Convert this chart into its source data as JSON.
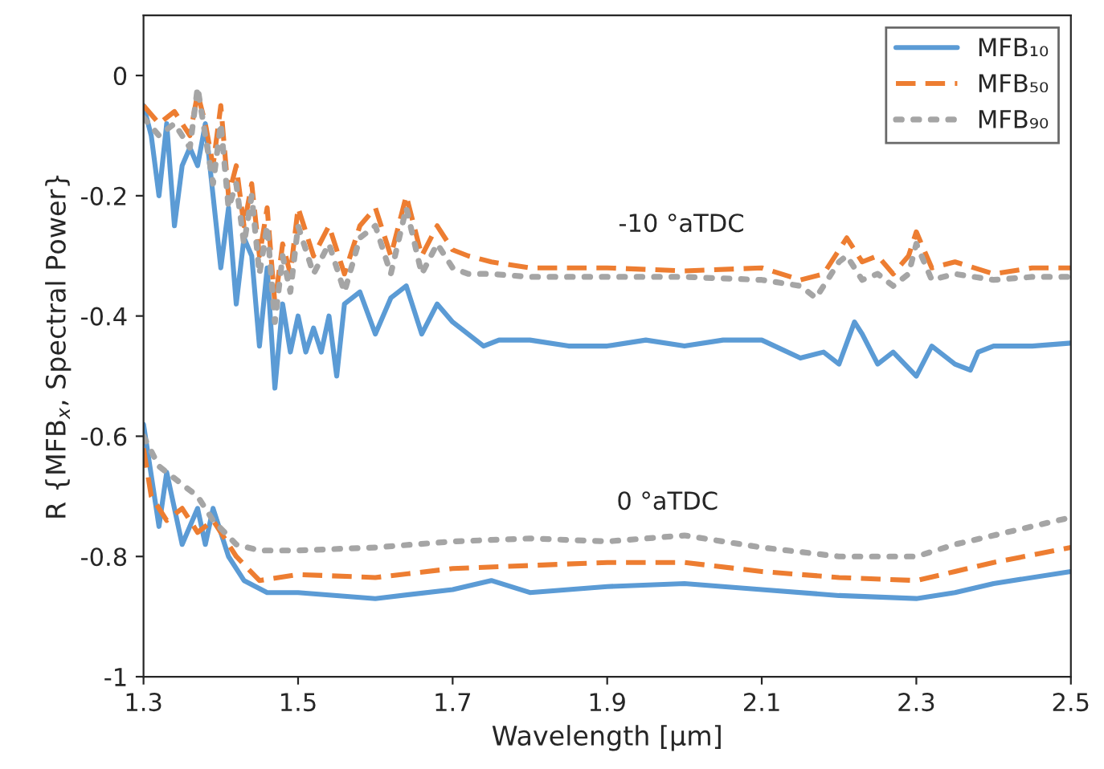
{
  "chart_data": {
    "type": "line",
    "xlabel": "Wavelength [µm]",
    "ylabel": "R {MFB$_{x}$, Spectral Power}",
    "xlim": [
      1.3,
      2.5
    ],
    "xticks": [
      1.3,
      1.5,
      1.7,
      1.9,
      2.1,
      2.3,
      2.5
    ],
    "ylim": [
      -1,
      0.1
    ],
    "yticks": [
      -1,
      -0.8,
      -0.6,
      -0.4,
      -0.2,
      0
    ],
    "grid": false,
    "legend": "top right",
    "marker": "none",
    "annotations": [
      "-10 °aTDC",
      "0 °aTDC"
    ],
    "series": [
      {
        "name": "MFB₁₀",
        "color": "#5b9bd5",
        "line_style": "solid",
        "x": [
          1.3,
          1.31,
          1.32,
          1.33,
          1.34,
          1.35,
          1.36,
          1.37,
          1.38,
          1.39,
          1.4,
          1.41,
          1.42,
          1.43,
          1.44,
          1.45,
          1.46,
          1.47,
          1.48,
          1.49,
          1.5,
          1.51,
          1.52,
          1.53,
          1.54,
          1.55,
          1.56,
          1.58,
          1.6,
          1.62,
          1.64,
          1.66,
          1.68,
          1.7,
          1.72,
          1.74,
          1.76,
          1.8,
          1.85,
          1.9,
          1.95,
          2.0,
          2.05,
          2.1,
          2.15,
          2.18,
          2.2,
          2.22,
          2.23,
          2.25,
          2.27,
          2.3,
          2.32,
          2.35,
          2.37,
          2.38,
          2.4,
          2.45,
          2.5
        ],
        "values": [
          -0.05,
          -0.1,
          -0.2,
          -0.08,
          -0.25,
          -0.15,
          -0.12,
          -0.15,
          -0.08,
          -0.2,
          -0.32,
          -0.22,
          -0.38,
          -0.27,
          -0.3,
          -0.45,
          -0.32,
          -0.52,
          -0.38,
          -0.46,
          -0.4,
          -0.46,
          -0.42,
          -0.46,
          -0.4,
          -0.5,
          -0.38,
          -0.36,
          -0.43,
          -0.37,
          -0.35,
          -0.43,
          -0.38,
          -0.41,
          -0.43,
          -0.45,
          -0.44,
          -0.44,
          -0.45,
          -0.45,
          -0.44,
          -0.45,
          -0.44,
          -0.44,
          -0.47,
          -0.46,
          -0.48,
          -0.41,
          -0.43,
          -0.48,
          -0.46,
          -0.5,
          -0.45,
          -0.48,
          -0.49,
          -0.46,
          -0.45,
          -0.45,
          -0.445
        ]
      },
      {
        "name": "MFB₅₀",
        "color": "#ed7d31",
        "line_style": "dashed",
        "x": [
          1.3,
          1.32,
          1.34,
          1.36,
          1.37,
          1.38,
          1.39,
          1.4,
          1.41,
          1.42,
          1.43,
          1.44,
          1.45,
          1.46,
          1.47,
          1.48,
          1.49,
          1.5,
          1.52,
          1.54,
          1.56,
          1.58,
          1.6,
          1.62,
          1.64,
          1.66,
          1.68,
          1.7,
          1.72,
          1.75,
          1.8,
          1.9,
          2.0,
          2.1,
          2.15,
          2.18,
          2.2,
          2.21,
          2.23,
          2.25,
          2.27,
          2.29,
          2.3,
          2.32,
          2.35,
          2.4,
          2.45,
          2.5
        ],
        "values": [
          -0.05,
          -0.08,
          -0.06,
          -0.1,
          -0.03,
          -0.08,
          -0.15,
          -0.05,
          -0.2,
          -0.15,
          -0.25,
          -0.18,
          -0.3,
          -0.22,
          -0.38,
          -0.28,
          -0.33,
          -0.22,
          -0.3,
          -0.25,
          -0.33,
          -0.25,
          -0.22,
          -0.3,
          -0.2,
          -0.3,
          -0.25,
          -0.29,
          -0.3,
          -0.31,
          -0.32,
          -0.32,
          -0.325,
          -0.32,
          -0.34,
          -0.33,
          -0.29,
          -0.27,
          -0.31,
          -0.3,
          -0.33,
          -0.3,
          -0.26,
          -0.32,
          -0.31,
          -0.33,
          -0.32,
          -0.32
        ]
      },
      {
        "name": "MFB₉₀",
        "color": "#a5a5a5",
        "line_style": "dotted",
        "x": [
          1.3,
          1.32,
          1.34,
          1.36,
          1.37,
          1.38,
          1.39,
          1.4,
          1.41,
          1.42,
          1.43,
          1.44,
          1.45,
          1.46,
          1.47,
          1.48,
          1.49,
          1.5,
          1.52,
          1.54,
          1.56,
          1.58,
          1.6,
          1.62,
          1.64,
          1.66,
          1.68,
          1.7,
          1.72,
          1.75,
          1.8,
          1.9,
          2.0,
          2.1,
          2.15,
          2.17,
          2.2,
          2.21,
          2.23,
          2.25,
          2.27,
          2.29,
          2.3,
          2.32,
          2.35,
          2.4,
          2.45,
          2.5
        ],
        "values": [
          -0.07,
          -0.1,
          -0.08,
          -0.12,
          -0.02,
          -0.1,
          -0.18,
          -0.08,
          -0.22,
          -0.18,
          -0.28,
          -0.2,
          -0.33,
          -0.25,
          -0.41,
          -0.3,
          -0.36,
          -0.25,
          -0.33,
          -0.28,
          -0.36,
          -0.27,
          -0.25,
          -0.33,
          -0.22,
          -0.33,
          -0.28,
          -0.32,
          -0.33,
          -0.33,
          -0.335,
          -0.335,
          -0.335,
          -0.34,
          -0.35,
          -0.37,
          -0.31,
          -0.3,
          -0.34,
          -0.33,
          -0.35,
          -0.33,
          -0.28,
          -0.34,
          -0.33,
          -0.34,
          -0.335,
          -0.335
        ]
      },
      {
        "color": "#5b9bd5",
        "line_style": "solid",
        "x": [
          1.3,
          1.32,
          1.33,
          1.35,
          1.37,
          1.38,
          1.39,
          1.41,
          1.43,
          1.46,
          1.5,
          1.6,
          1.7,
          1.75,
          1.8,
          1.9,
          2.0,
          2.1,
          2.2,
          2.3,
          2.35,
          2.4,
          2.5
        ],
        "values": [
          -0.58,
          -0.75,
          -0.66,
          -0.78,
          -0.72,
          -0.78,
          -0.72,
          -0.8,
          -0.84,
          -0.86,
          -0.86,
          -0.87,
          -0.855,
          -0.84,
          -0.86,
          -0.85,
          -0.845,
          -0.855,
          -0.865,
          -0.87,
          -0.86,
          -0.845,
          -0.825
        ]
      },
      {
        "color": "#ed7d31",
        "line_style": "dashed",
        "x": [
          1.3,
          1.31,
          1.33,
          1.35,
          1.37,
          1.39,
          1.42,
          1.45,
          1.5,
          1.6,
          1.7,
          1.8,
          1.9,
          2.0,
          2.1,
          2.2,
          2.3,
          2.35,
          2.4,
          2.5
        ],
        "values": [
          -0.62,
          -0.7,
          -0.74,
          -0.72,
          -0.76,
          -0.74,
          -0.8,
          -0.84,
          -0.83,
          -0.835,
          -0.82,
          -0.815,
          -0.81,
          -0.81,
          -0.825,
          -0.835,
          -0.84,
          -0.825,
          -0.81,
          -0.785
        ]
      },
      {
        "color": "#a5a5a5",
        "line_style": "dotted",
        "x": [
          1.3,
          1.32,
          1.35,
          1.37,
          1.39,
          1.42,
          1.45,
          1.5,
          1.6,
          1.7,
          1.8,
          1.9,
          2.0,
          2.1,
          2.2,
          2.3,
          2.35,
          2.4,
          2.5
        ],
        "values": [
          -0.6,
          -0.65,
          -0.68,
          -0.7,
          -0.74,
          -0.78,
          -0.79,
          -0.79,
          -0.785,
          -0.775,
          -0.77,
          -0.775,
          -0.765,
          -0.785,
          -0.8,
          -0.8,
          -0.78,
          -0.765,
          -0.735
        ]
      }
    ]
  }
}
